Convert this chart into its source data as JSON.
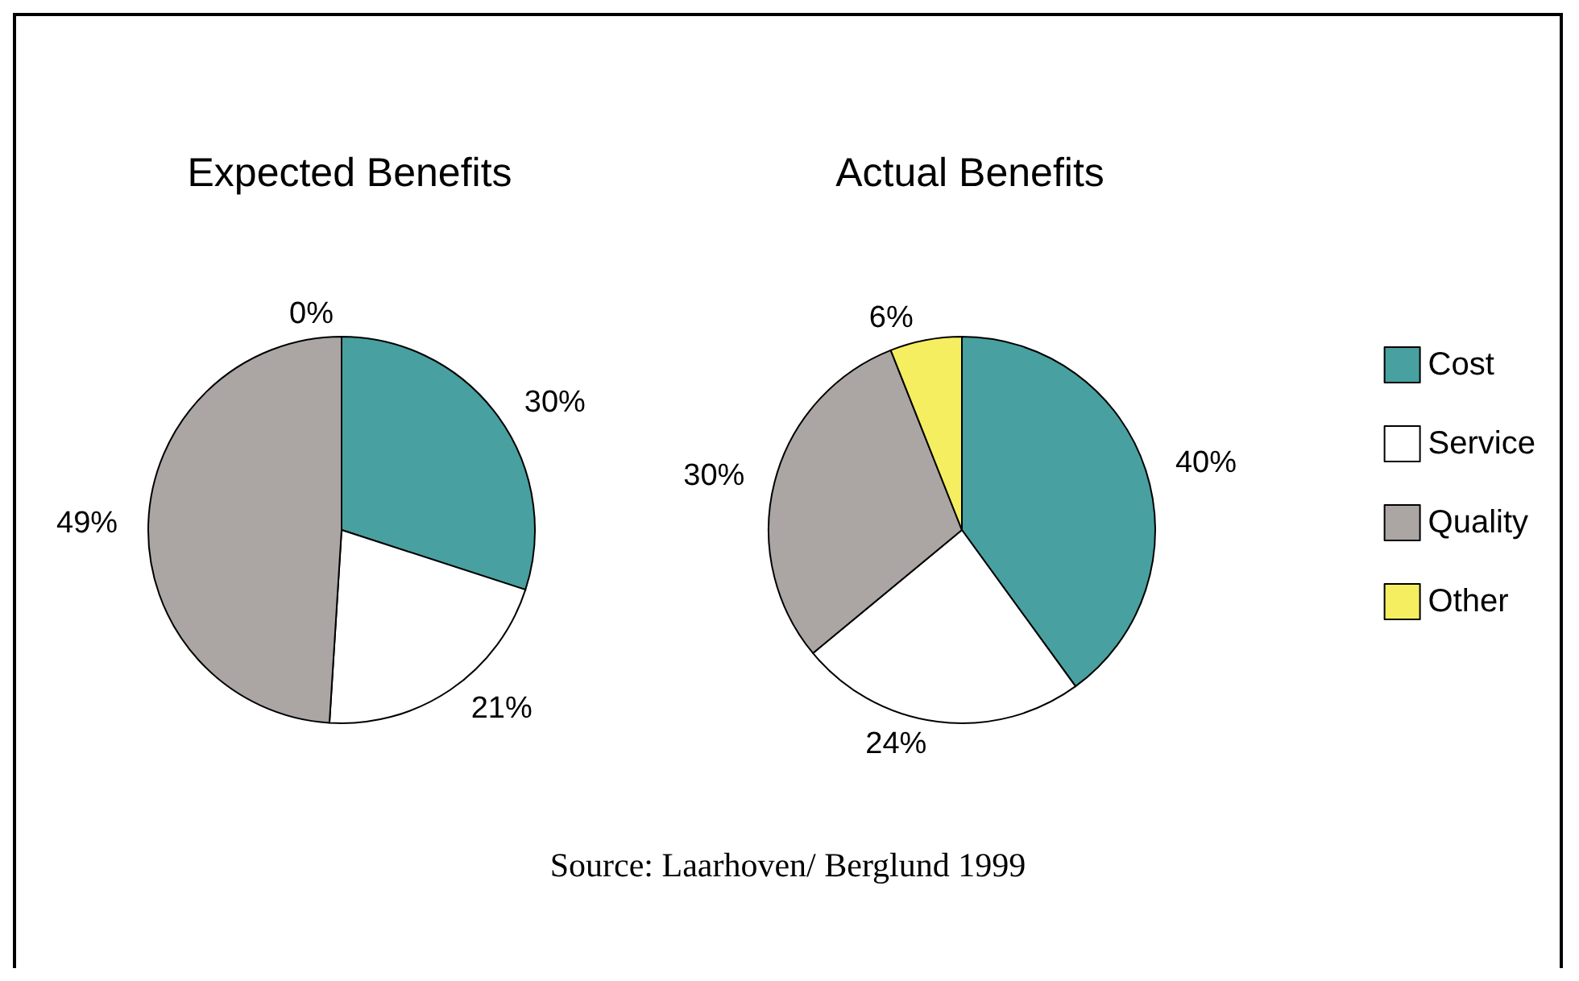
{
  "chart_data": {
    "type": "pie",
    "categories": [
      "Cost",
      "Service",
      "Quality",
      "Other"
    ],
    "colors": [
      "#48a0a0",
      "#ffffff",
      "#aba6a3",
      "#f5ee60"
    ],
    "legend": "right",
    "series": [
      {
        "name": "Expected Benefits",
        "values": [
          30,
          21,
          49,
          0
        ],
        "value_labels": [
          "30%",
          "21%",
          "49%",
          "0%"
        ]
      },
      {
        "name": "Actual Benefits",
        "values": [
          40,
          24,
          30,
          6
        ],
        "value_labels": [
          "40%",
          "24%",
          "30%",
          "6%"
        ]
      }
    ],
    "annotations": [
      "Source: Laarhoven/ Berglund 1999"
    ]
  }
}
